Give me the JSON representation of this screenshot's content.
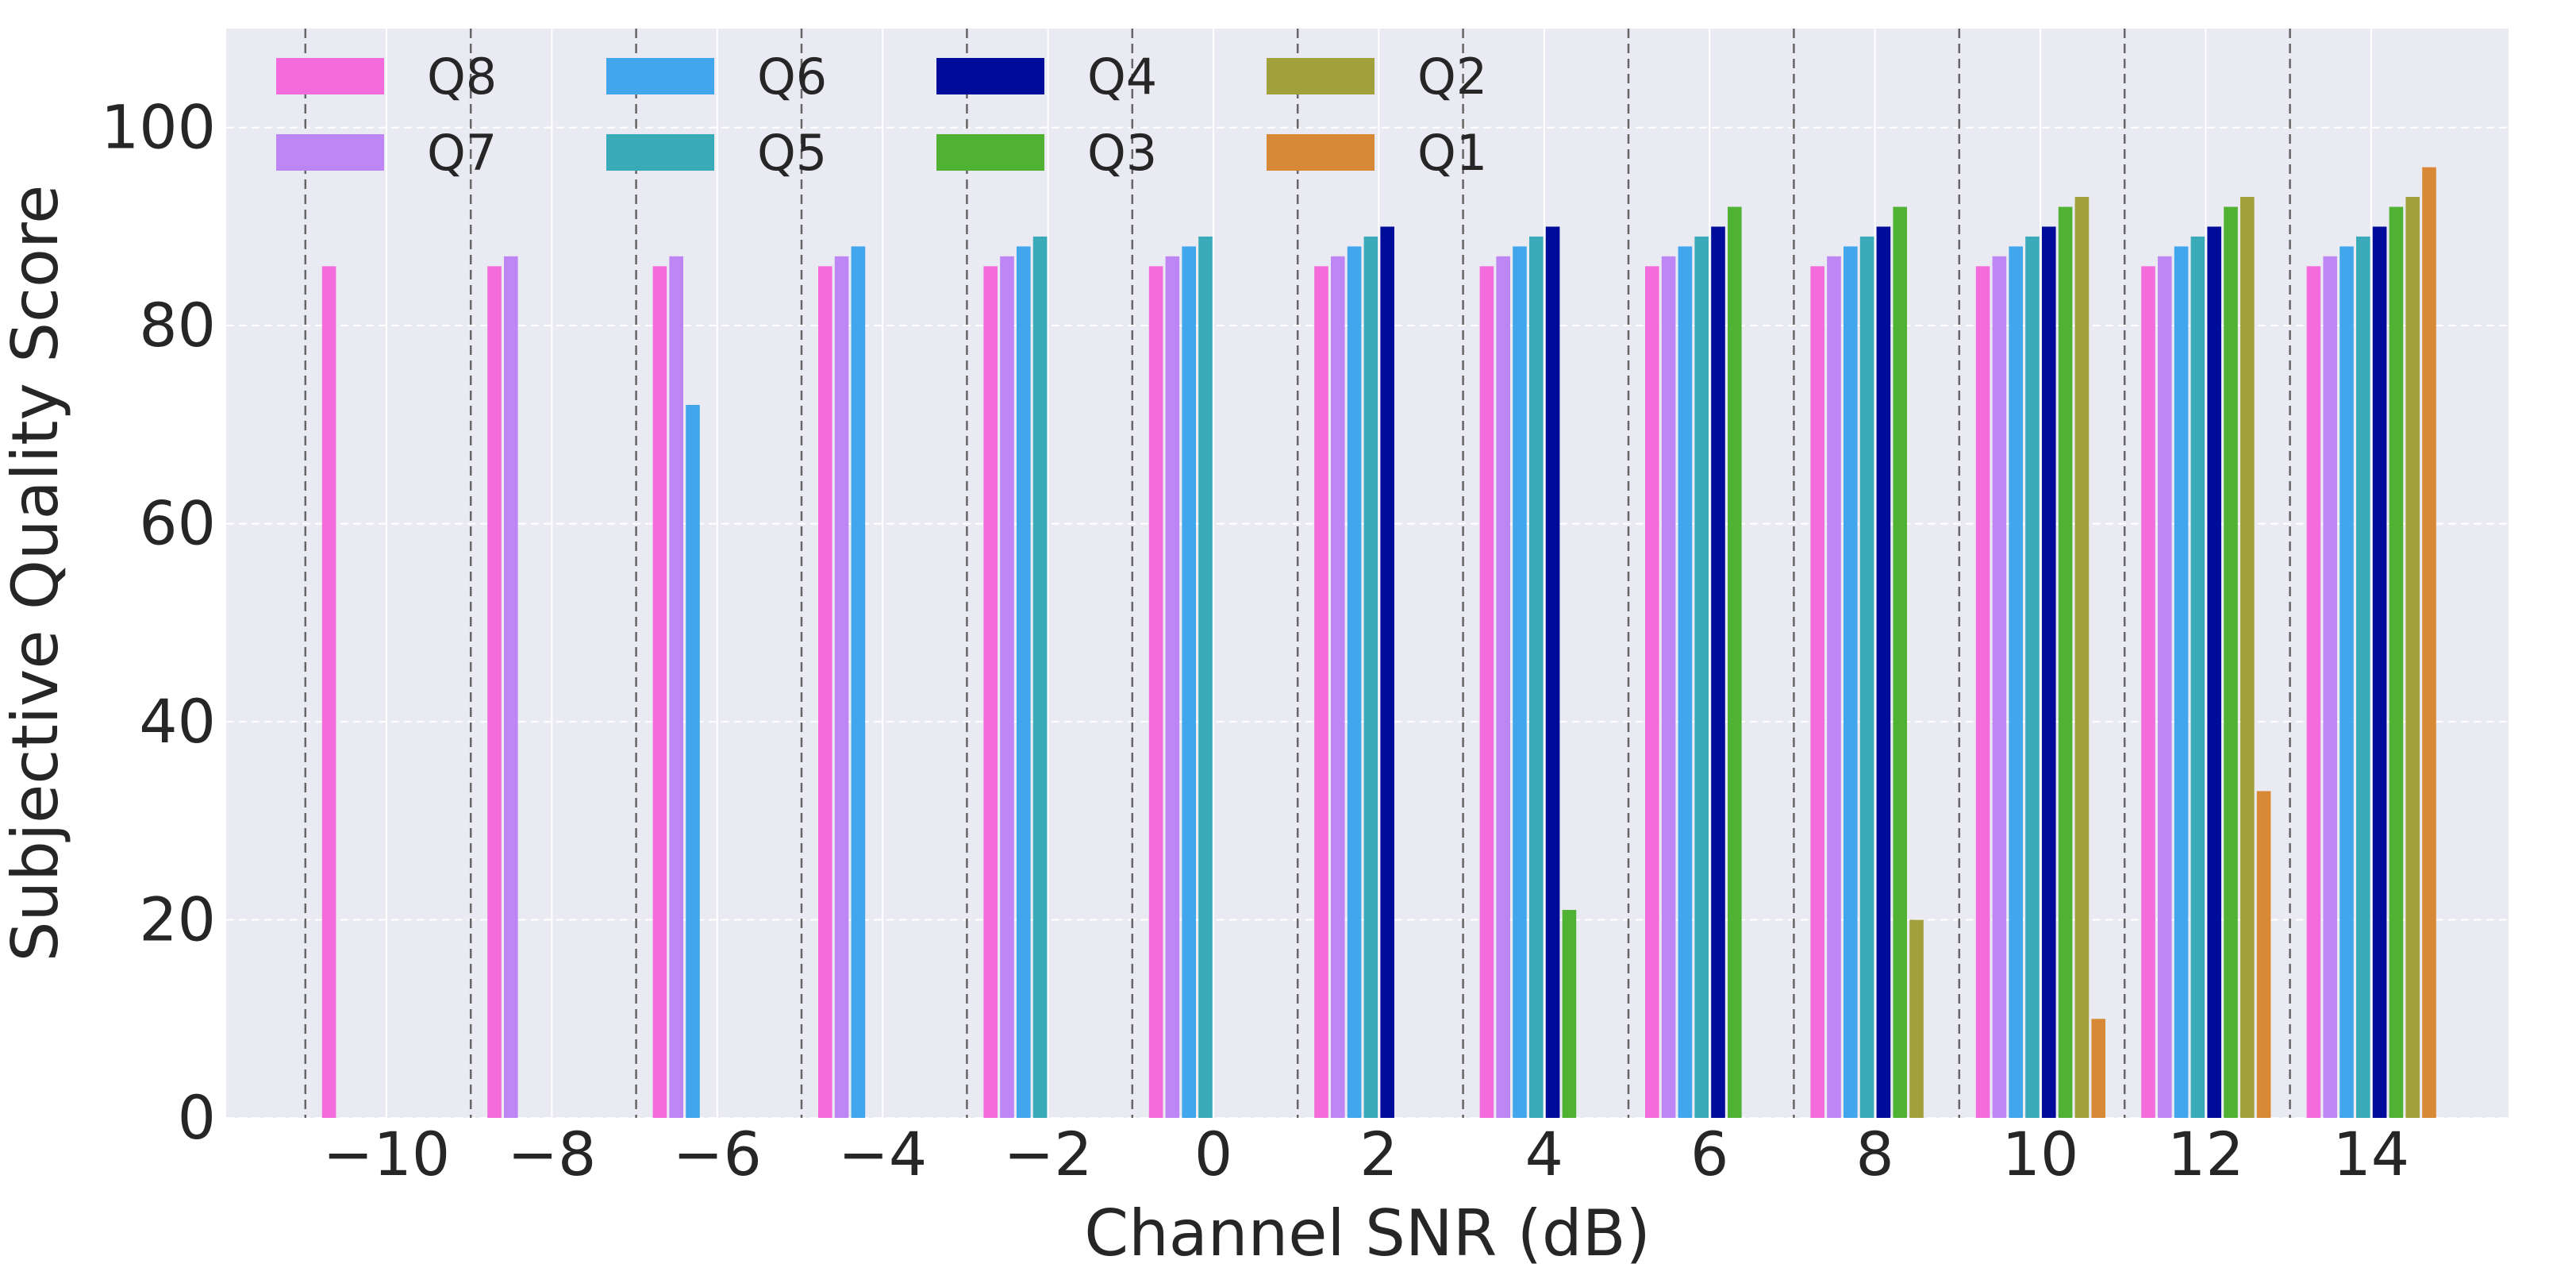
{
  "chart_data": {
    "type": "bar",
    "title": "",
    "xlabel": "Channel SNR (dB)",
    "ylabel": "Subjective Quality Score",
    "ylim": [
      0,
      110
    ],
    "yticks": [
      "0",
      "20",
      "40",
      "60",
      "80",
      "100"
    ],
    "categories": [
      "−10",
      "−8",
      "−6",
      "−4",
      "−2",
      "0",
      "2",
      "4",
      "6",
      "8",
      "10",
      "12",
      "14"
    ],
    "grid": true,
    "legend_position": "top-left",
    "background": "#eaeaf2",
    "series": [
      {
        "name": "Q8",
        "color": "#f46bdb",
        "values": [
          86,
          86,
          86,
          86,
          86,
          86,
          86,
          86,
          86,
          86,
          86,
          86,
          86
        ]
      },
      {
        "name": "Q7",
        "color": "#bd86f4",
        "values": [
          null,
          87,
          87,
          87,
          87,
          87,
          87,
          87,
          87,
          87,
          87,
          87,
          87
        ]
      },
      {
        "name": "Q6",
        "color": "#41a6eb",
        "values": [
          null,
          null,
          72,
          88,
          88,
          88,
          88,
          88,
          88,
          88,
          88,
          88,
          88
        ]
      },
      {
        "name": "Q5",
        "color": "#39aab8",
        "values": [
          null,
          null,
          null,
          null,
          89,
          89,
          89,
          89,
          89,
          89,
          89,
          89,
          89
        ]
      },
      {
        "name": "Q4",
        "color": "#000c99",
        "values": [
          null,
          null,
          null,
          null,
          null,
          null,
          90,
          90,
          90,
          90,
          90,
          90,
          90
        ]
      },
      {
        "name": "Q3",
        "color": "#4fb233",
        "values": [
          null,
          null,
          null,
          null,
          null,
          null,
          null,
          21,
          92,
          92,
          92,
          92,
          92
        ]
      },
      {
        "name": "Q2",
        "color": "#a2a03a",
        "values": [
          null,
          null,
          null,
          null,
          null,
          null,
          null,
          null,
          null,
          20,
          93,
          93,
          93
        ]
      },
      {
        "name": "Q1",
        "color": "#d88935",
        "values": [
          null,
          null,
          null,
          null,
          null,
          null,
          null,
          null,
          null,
          null,
          10,
          33,
          96
        ]
      }
    ],
    "legend_columns": [
      [
        "Q8",
        "Q7"
      ],
      [
        "Q6",
        "Q5"
      ],
      [
        "Q4",
        "Q3"
      ],
      [
        "Q2",
        "Q1"
      ]
    ]
  }
}
